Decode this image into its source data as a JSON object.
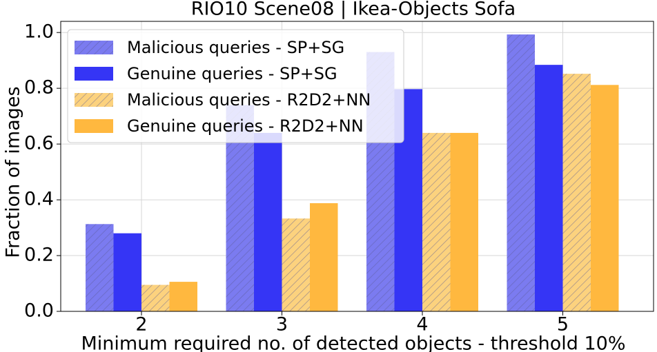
{
  "chart_data": {
    "type": "bar",
    "title": "RIO10 Scene08 | Ikea-Objects Sofa",
    "xlabel": "Minimum required no. of detected objects - threshold 10%",
    "ylabel": "Fraction of images",
    "categories": [
      "2",
      "3",
      "4",
      "5"
    ],
    "series": [
      {
        "name": "Malicious queries - SP+SG",
        "color": "#7b7bf0",
        "hatch": true,
        "values": [
          0.313,
          0.74,
          0.93,
          0.993
        ]
      },
      {
        "name": "Genuine queries - SP+SG",
        "color": "#3535f5",
        "hatch": false,
        "values": [
          0.28,
          0.64,
          0.797,
          0.884
        ]
      },
      {
        "name": "Malicious queries - R2D2+NN",
        "color": "#fcd27e",
        "hatch": true,
        "values": [
          0.095,
          0.333,
          0.64,
          0.852
        ]
      },
      {
        "name": "Genuine queries - R2D2+NN",
        "color": "#ffb83f",
        "hatch": false,
        "values": [
          0.106,
          0.388,
          0.64,
          0.812
        ]
      }
    ],
    "ylim": [
      0,
      1.04
    ],
    "yticks": [
      {
        "value": 0,
        "label": "0.0"
      },
      {
        "value": 0.2,
        "label": "0.2"
      },
      {
        "value": 0.4,
        "label": "0.4"
      },
      {
        "value": 0.6,
        "label": "0.6"
      },
      {
        "value": 0.8,
        "label": "0.8"
      },
      {
        "value": 1,
        "label": "1.0"
      }
    ],
    "grid": true,
    "legend": "upper-left"
  }
}
